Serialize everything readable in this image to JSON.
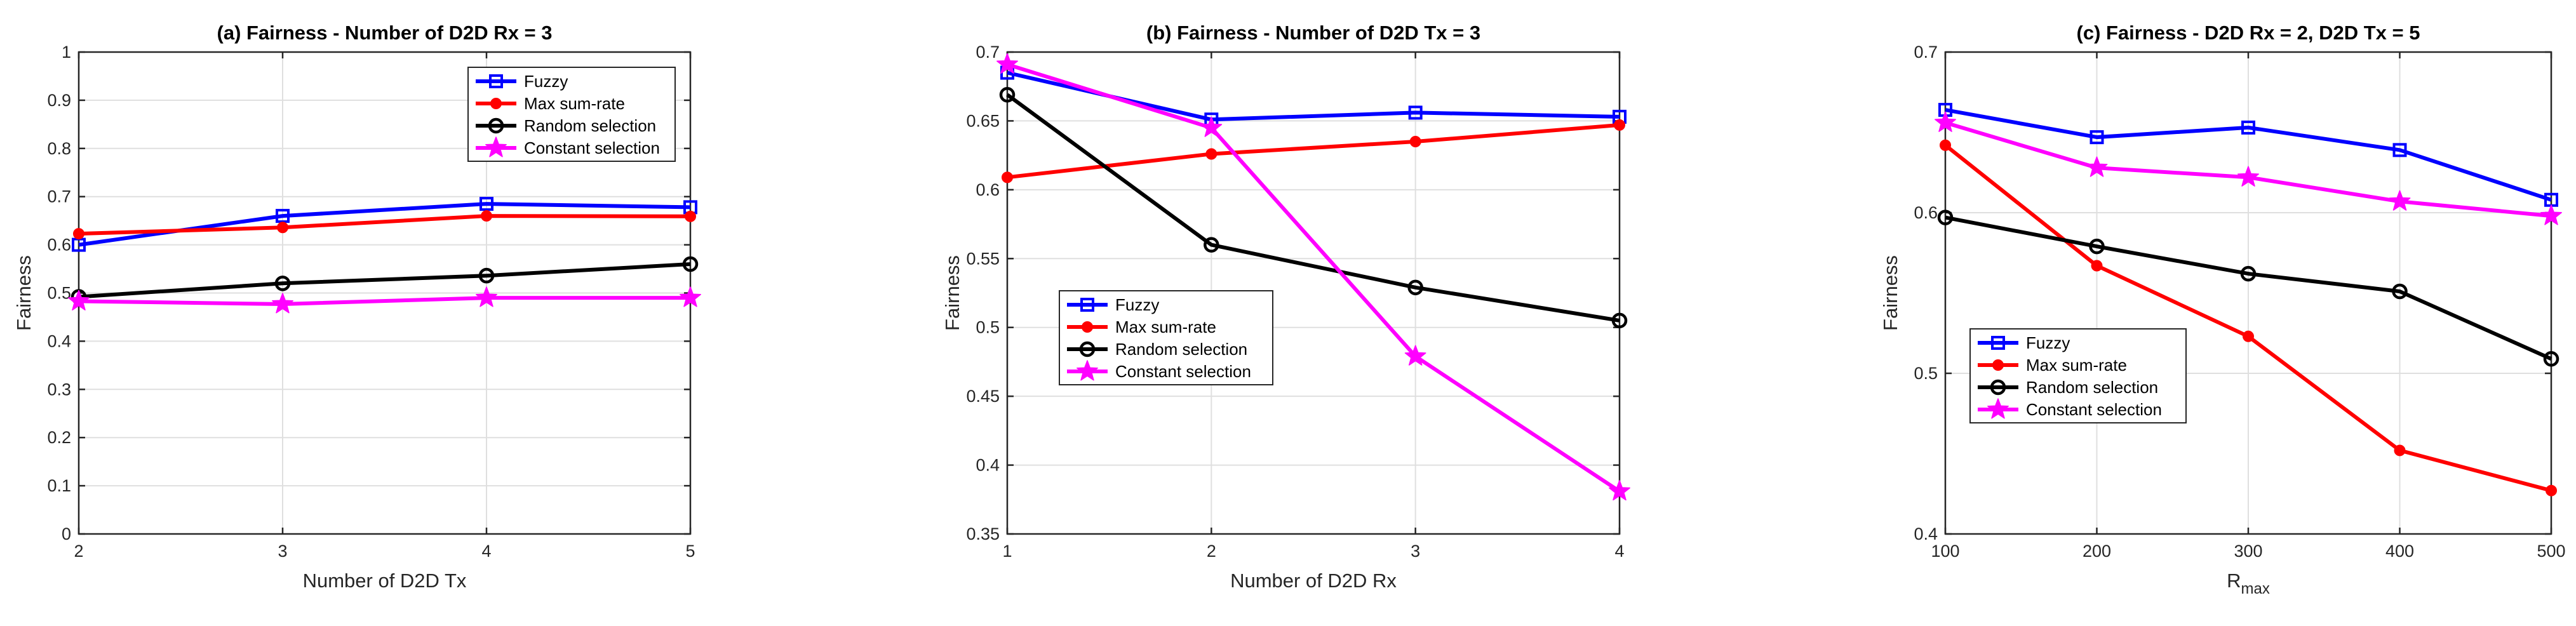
{
  "chart_data": [
    {
      "type": "line",
      "title": "(a) Fairness - Number of D2D Rx = 3",
      "xlabel": "Number of D2D Tx",
      "ylabel": "Fairness",
      "xlim": [
        2,
        5
      ],
      "ylim": [
        0,
        1
      ],
      "grid": true,
      "legend_position": "top-right",
      "x": [
        2,
        3,
        4,
        5
      ],
      "xticks": [
        "2",
        "3",
        "4",
        "5"
      ],
      "yticks": [
        "0",
        "0.1",
        "0.2",
        "0.3",
        "0.4",
        "0.5",
        "0.6",
        "0.7",
        "0.8",
        "0.9",
        "1"
      ],
      "series": [
        {
          "name": "Fuzzy",
          "color": "#0000ff",
          "marker": "square",
          "values": [
            0.6,
            0.66,
            0.685,
            0.678
          ]
        },
        {
          "name": "Max sum-rate",
          "color": "#ff0000",
          "marker": "dot",
          "values": [
            0.623,
            0.636,
            0.66,
            0.659
          ]
        },
        {
          "name": "Random selection",
          "color": "#000000",
          "marker": "circle",
          "values": [
            0.492,
            0.52,
            0.536,
            0.56
          ]
        },
        {
          "name": "Constant selection",
          "color": "#ff00ff",
          "marker": "star",
          "values": [
            0.483,
            0.477,
            0.49,
            0.49
          ]
        }
      ]
    },
    {
      "type": "line",
      "title": "(b) Fairness - Number of D2D Tx = 3",
      "xlabel": "Number of D2D Rx",
      "ylabel": "Fairness",
      "xlim": [
        1,
        4
      ],
      "ylim": [
        0.35,
        0.7
      ],
      "grid": true,
      "legend_position": "lower-left",
      "x": [
        1,
        2,
        3,
        4
      ],
      "xticks": [
        "1",
        "2",
        "3",
        "4"
      ],
      "yticks": [
        "0.35",
        "0.4",
        "0.45",
        "0.5",
        "0.55",
        "0.6",
        "0.65",
        "0.7"
      ],
      "series": [
        {
          "name": "Fuzzy",
          "color": "#0000ff",
          "marker": "square",
          "values": [
            0.685,
            0.651,
            0.656,
            0.653
          ]
        },
        {
          "name": "Max sum-rate",
          "color": "#ff0000",
          "marker": "dot",
          "values": [
            0.609,
            0.626,
            0.635,
            0.647
          ]
        },
        {
          "name": "Random selection",
          "color": "#000000",
          "marker": "circle",
          "values": [
            0.669,
            0.56,
            0.529,
            0.505
          ]
        },
        {
          "name": "Constant selection",
          "color": "#ff00ff",
          "marker": "star",
          "values": [
            0.691,
            0.645,
            0.479,
            0.381
          ]
        }
      ]
    },
    {
      "type": "line",
      "title": "(c) Fairness - D2D Rx = 2, D2D Tx = 5",
      "xlabel": "R",
      "xlabel_sub": "max",
      "ylabel": "Fairness",
      "xlim": [
        100,
        500
      ],
      "ylim": [
        0.4,
        0.7
      ],
      "grid": true,
      "legend_position": "lower-left",
      "x": [
        100,
        200,
        300,
        400,
        500
      ],
      "xticks": [
        "100",
        "200",
        "300",
        "400",
        "500"
      ],
      "yticks": [
        "0.4",
        "0.5",
        "0.6",
        "0.7"
      ],
      "series": [
        {
          "name": "Fuzzy",
          "color": "#0000ff",
          "marker": "square",
          "values": [
            0.664,
            0.647,
            0.653,
            0.639,
            0.608
          ]
        },
        {
          "name": "Max sum-rate",
          "color": "#ff0000",
          "marker": "dot",
          "values": [
            0.642,
            0.567,
            0.523,
            0.452,
            0.427
          ]
        },
        {
          "name": "Random selection",
          "color": "#000000",
          "marker": "circle",
          "values": [
            0.597,
            0.579,
            0.562,
            0.551,
            0.509
          ]
        },
        {
          "name": "Constant selection",
          "color": "#ff00ff",
          "marker": "star",
          "values": [
            0.656,
            0.628,
            0.622,
            0.607,
            0.598
          ]
        }
      ]
    }
  ]
}
